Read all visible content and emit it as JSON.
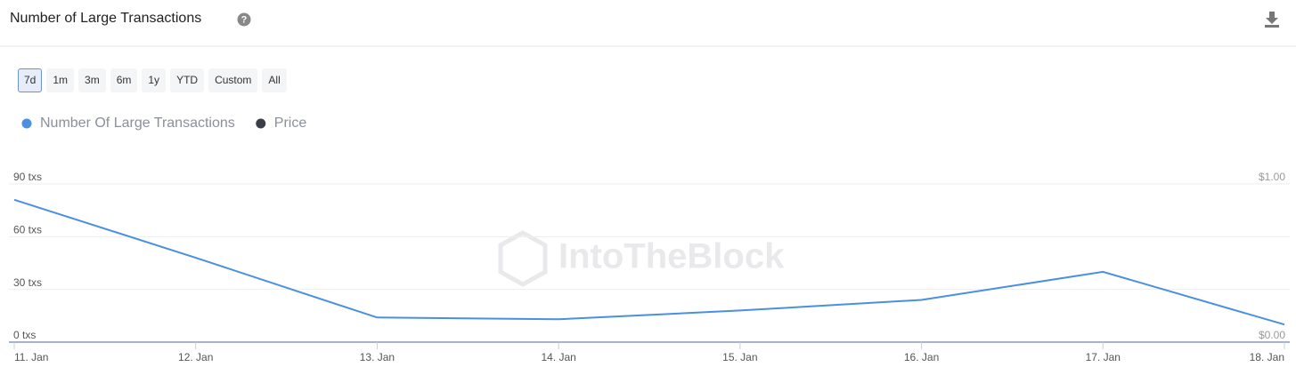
{
  "chart_data": {
    "type": "line",
    "title": "Number of Large Transactions",
    "range_buttons": [
      "7d",
      "1m",
      "3m",
      "6m",
      "1y",
      "YTD",
      "Custom",
      "All"
    ],
    "selected_range": 0,
    "watermark": "IntoTheBlock",
    "categories": [
      "11. Jan",
      "12. Jan",
      "13. Jan",
      "14. Jan",
      "15. Jan",
      "16. Jan",
      "17. Jan",
      "18. Jan"
    ],
    "series": [
      {
        "name": "Number Of Large Transactions",
        "color": "#4a8fe0",
        "values": [
          81,
          48,
          14,
          13,
          18,
          24,
          40,
          10
        ]
      },
      {
        "name": "Price",
        "color": "#3a3f47",
        "values": [
          null,
          null,
          null,
          null,
          null,
          null,
          null,
          null
        ],
        "axis": "y2"
      }
    ],
    "ylim": [
      0,
      90
    ],
    "yticks": [
      {
        "value": 0,
        "label": "0 txs"
      },
      {
        "value": 30,
        "label": "30 txs"
      },
      {
        "value": 60,
        "label": "60 txs"
      },
      {
        "value": 90,
        "label": "90 txs"
      }
    ],
    "y2lim": [
      0,
      1
    ],
    "y2ticks": [
      {
        "value": 0,
        "label": "$0.00"
      },
      {
        "value": 1,
        "label": "$1.00"
      }
    ],
    "grid": true
  }
}
